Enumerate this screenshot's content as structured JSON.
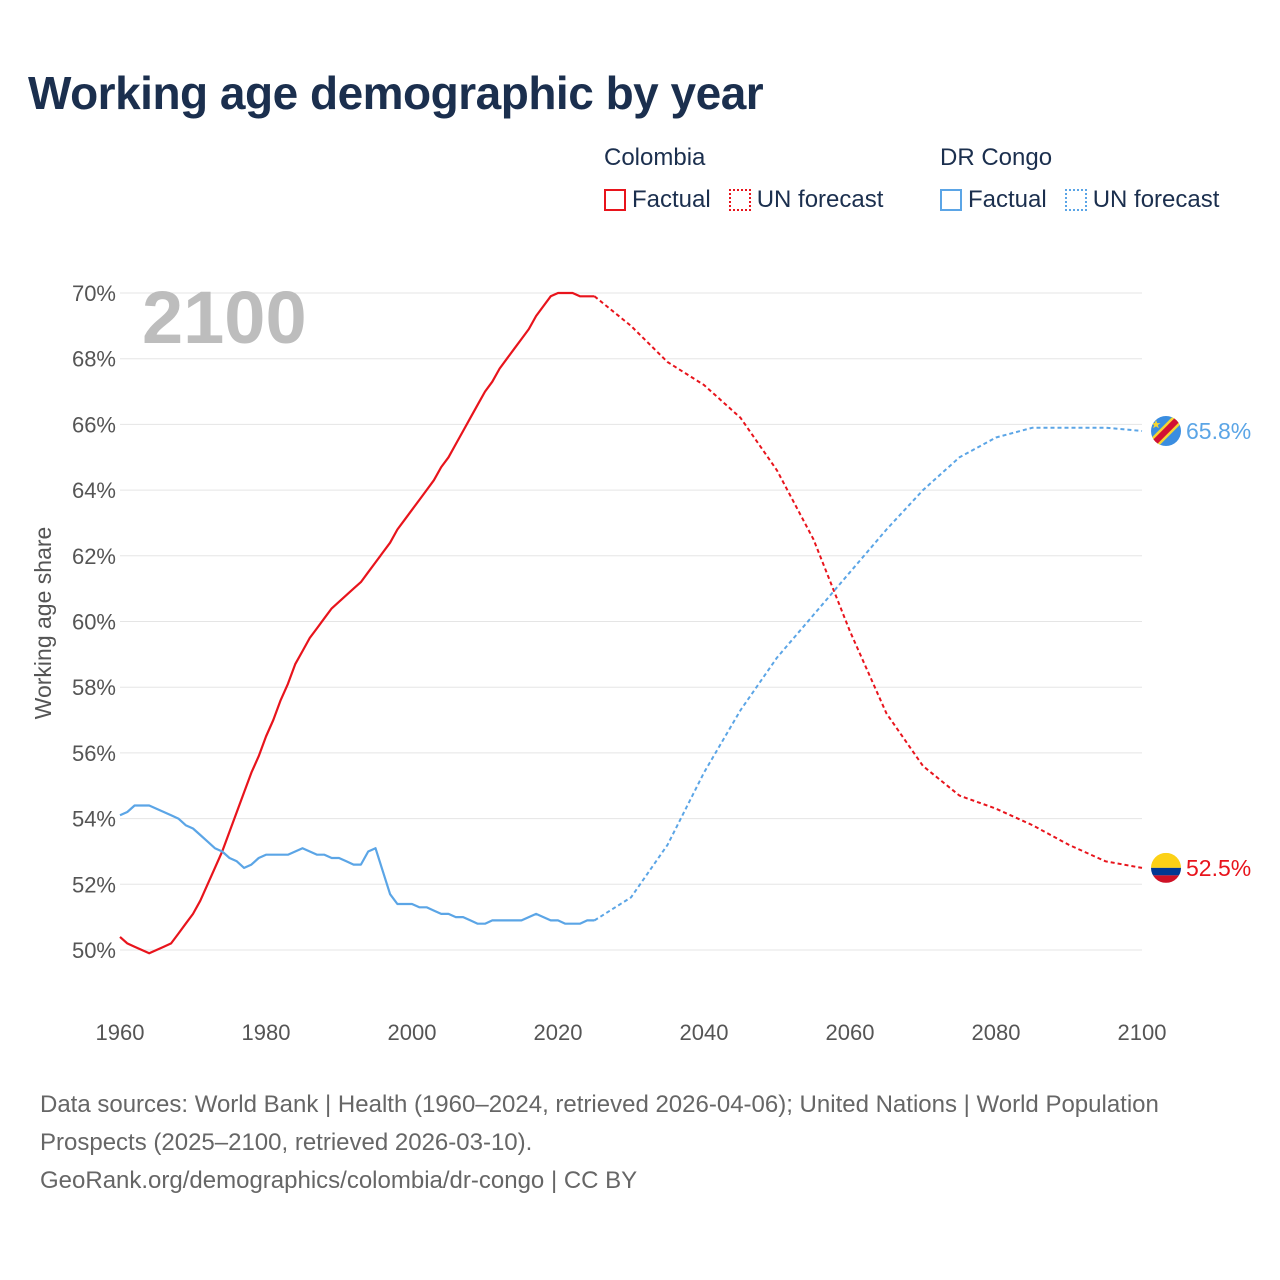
{
  "colors": {
    "colombia": "#e8141c",
    "drc": "#5ba5e6",
    "title": "#1b2f4e",
    "grid": "#e5e5e5"
  },
  "title": "Working age demographic by year",
  "legend": {
    "colombia": {
      "name": "Colombia",
      "factual": "Factual",
      "forecast": "UN forecast"
    },
    "drc": {
      "name": "DR Congo",
      "factual": "Factual",
      "forecast": "UN forecast"
    }
  },
  "year_display": "2100",
  "source": {
    "line1": "Data sources: World Bank | Health (1960–2024, retrieved 2026-04-06); United Nations | World Population Prospects (2025–2100, retrieved 2026-03-10).",
    "line2": "GeoRank.org/demographics/colombia/dr-congo | CC BY"
  },
  "chart_data": {
    "type": "line",
    "title": "Working age demographic by year",
    "xlabel": "",
    "ylabel": "Working age share",
    "xlim": [
      1960,
      2100
    ],
    "ylim": [
      48.8,
      70.5
    ],
    "x_ticks": [
      1960,
      1980,
      2000,
      2020,
      2040,
      2060,
      2080,
      2100
    ],
    "y_ticks": [
      50,
      52,
      54,
      56,
      58,
      60,
      62,
      64,
      66,
      68,
      70
    ],
    "y_tick_labels": [
      "50%",
      "52%",
      "54%",
      "56%",
      "58%",
      "60%",
      "62%",
      "64%",
      "66%",
      "68%",
      "70%"
    ],
    "x_tick_labels": [
      "1960",
      "1980",
      "2000",
      "2020",
      "2040",
      "2060",
      "2080",
      "2100"
    ],
    "grid": true,
    "series": [
      {
        "name": "Colombia",
        "color_key": "colombia",
        "end_label": "52.5%",
        "factual": {
          "x": [
            1960,
            1961,
            1962,
            1963,
            1964,
            1965,
            1966,
            1967,
            1968,
            1969,
            1970,
            1971,
            1972,
            1973,
            1974,
            1975,
            1976,
            1977,
            1978,
            1979,
            1980,
            1981,
            1982,
            1983,
            1984,
            1985,
            1986,
            1987,
            1988,
            1989,
            1990,
            1991,
            1992,
            1993,
            1994,
            1995,
            1996,
            1997,
            1998,
            1999,
            2000,
            2001,
            2002,
            2003,
            2004,
            2005,
            2006,
            2007,
            2008,
            2009,
            2010,
            2011,
            2012,
            2013,
            2014,
            2015,
            2016,
            2017,
            2018,
            2019,
            2020,
            2021,
            2022,
            2023,
            2024,
            2025
          ],
          "y": [
            50.4,
            50.2,
            50.1,
            50.0,
            49.9,
            50.0,
            50.1,
            50.2,
            50.5,
            50.8,
            51.1,
            51.5,
            52.0,
            52.5,
            53.0,
            53.6,
            54.2,
            54.8,
            55.4,
            55.9,
            56.5,
            57.0,
            57.6,
            58.1,
            58.7,
            59.1,
            59.5,
            59.8,
            60.1,
            60.4,
            60.6,
            60.8,
            61.0,
            61.2,
            61.5,
            61.8,
            62.1,
            62.4,
            62.8,
            63.1,
            63.4,
            63.7,
            64.0,
            64.3,
            64.7,
            65.0,
            65.4,
            65.8,
            66.2,
            66.6,
            67.0,
            67.3,
            67.7,
            68.0,
            68.3,
            68.6,
            68.9,
            69.3,
            69.6,
            69.9,
            70.0,
            70.0,
            70.0,
            69.9,
            69.9,
            69.9
          ]
        },
        "forecast": {
          "x": [
            2025,
            2030,
            2035,
            2040,
            2045,
            2050,
            2055,
            2060,
            2065,
            2070,
            2075,
            2080,
            2085,
            2090,
            2095,
            2100
          ],
          "y": [
            69.9,
            69.0,
            67.9,
            67.2,
            66.2,
            64.6,
            62.5,
            59.7,
            57.2,
            55.6,
            54.7,
            54.3,
            53.8,
            53.2,
            52.7,
            52.5
          ]
        }
      },
      {
        "name": "DR Congo",
        "color_key": "drc",
        "end_label": "65.8%",
        "factual": {
          "x": [
            1960,
            1961,
            1962,
            1963,
            1964,
            1965,
            1966,
            1967,
            1968,
            1969,
            1970,
            1971,
            1972,
            1973,
            1974,
            1975,
            1976,
            1977,
            1978,
            1979,
            1980,
            1981,
            1982,
            1983,
            1984,
            1985,
            1986,
            1987,
            1988,
            1989,
            1990,
            1991,
            1992,
            1993,
            1994,
            1995,
            1996,
            1997,
            1998,
            1999,
            2000,
            2001,
            2002,
            2003,
            2004,
            2005,
            2006,
            2007,
            2008,
            2009,
            2010,
            2011,
            2012,
            2013,
            2014,
            2015,
            2016,
            2017,
            2018,
            2019,
            2020,
            2021,
            2022,
            2023,
            2024,
            2025
          ],
          "y": [
            54.1,
            54.2,
            54.4,
            54.4,
            54.4,
            54.3,
            54.2,
            54.1,
            54.0,
            53.8,
            53.7,
            53.5,
            53.3,
            53.1,
            53.0,
            52.8,
            52.7,
            52.5,
            52.6,
            52.8,
            52.9,
            52.9,
            52.9,
            52.9,
            53.0,
            53.1,
            53.0,
            52.9,
            52.9,
            52.8,
            52.8,
            52.7,
            52.6,
            52.6,
            53.0,
            53.1,
            52.4,
            51.7,
            51.4,
            51.4,
            51.4,
            51.3,
            51.3,
            51.2,
            51.1,
            51.1,
            51.0,
            51.0,
            50.9,
            50.8,
            50.8,
            50.9,
            50.9,
            50.9,
            50.9,
            50.9,
            51.0,
            51.1,
            51.0,
            50.9,
            50.9,
            50.8,
            50.8,
            50.8,
            50.9,
            50.9
          ]
        },
        "forecast": {
          "x": [
            2025,
            2030,
            2035,
            2040,
            2045,
            2050,
            2055,
            2060,
            2065,
            2070,
            2075,
            2080,
            2085,
            2090,
            2095,
            2100
          ],
          "y": [
            50.9,
            51.6,
            53.2,
            55.4,
            57.3,
            58.9,
            60.2,
            61.5,
            62.8,
            64.0,
            65.0,
            65.6,
            65.9,
            65.9,
            65.9,
            65.8
          ]
        }
      }
    ],
    "annotations": [
      "2100"
    ]
  }
}
